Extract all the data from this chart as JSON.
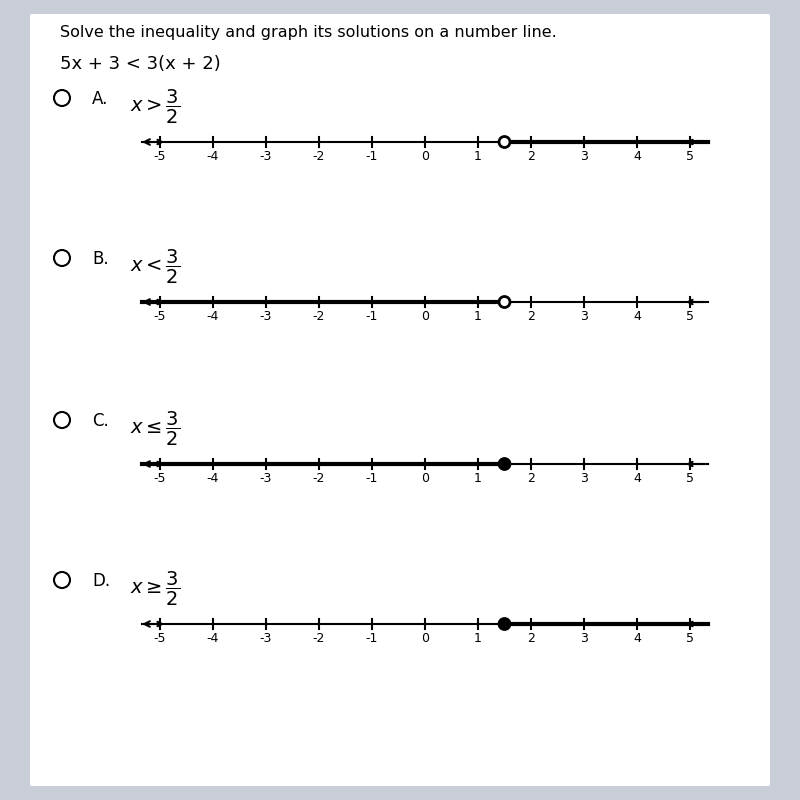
{
  "title": "Solve the inequality and graph its solutions on a number line.",
  "problem": "5x + 3 < 3(x + 2)",
  "bg_outer": "#c8cdd8",
  "bg_card": "#f0f2ee",
  "text_color": "#000000",
  "options": [
    {
      "label": "A.",
      "latex": "$x > \\dfrac{3}{2}$",
      "point": 1.5,
      "open_circle": true,
      "arrow_direction": "right"
    },
    {
      "label": "B.",
      "latex": "$x < \\dfrac{3}{2}$",
      "point": 1.5,
      "open_circle": true,
      "arrow_direction": "left"
    },
    {
      "label": "C.",
      "latex": "$x \\leq \\dfrac{3}{2}$",
      "point": 1.5,
      "open_circle": false,
      "arrow_direction": "left"
    },
    {
      "label": "D.",
      "latex": "$x \\geq \\dfrac{3}{2}$",
      "point": 1.5,
      "open_circle": false,
      "arrow_direction": "right"
    }
  ],
  "number_line_range": [
    -5,
    5
  ],
  "tick_positions": [
    -5,
    -4,
    -3,
    -2,
    -1,
    0,
    1,
    2,
    3,
    4,
    5
  ],
  "tick_labels": [
    "-5",
    "-4",
    "-3",
    "-2",
    "-1",
    "0",
    "1",
    "2",
    "3",
    "4",
    "5"
  ]
}
